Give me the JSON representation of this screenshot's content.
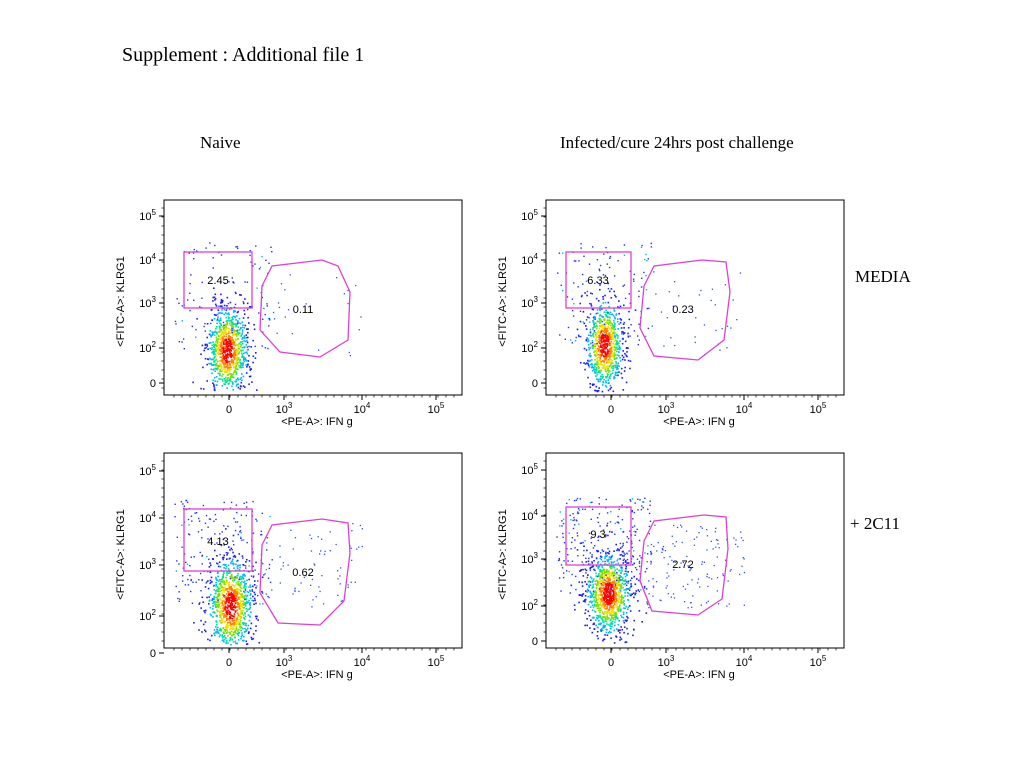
{
  "page": {
    "title": "Supplement : Additional file 1",
    "columns": [
      "Naive",
      "Infected/cure 24hrs post challenge"
    ],
    "rows": [
      "MEDIA",
      "+ 2C11"
    ]
  },
  "colors": {
    "gate": "#e040d0",
    "density_scale": [
      "#1a1aff",
      "#00b4ff",
      "#00e0a0",
      "#7de000",
      "#f0e000",
      "#ff8000",
      "#ff0000"
    ]
  },
  "chart_data": [
    {
      "type": "scatter",
      "plot_kind": "flow-cytometry density dot plot",
      "condition": "Naive",
      "stimulation": "MEDIA",
      "xlabel": "<PE-A>: IFN g",
      "ylabel": "<FITC-A>: KLRG1",
      "x_scale": "biexponential",
      "y_scale": "biexponential",
      "x_ticks": [
        "0",
        "10^3",
        "10^4",
        "10^5"
      ],
      "y_ticks": [
        "0",
        "10^2",
        "10^3",
        "10^4",
        "10^5"
      ],
      "gates": [
        {
          "shape": "rectangle",
          "label": "2.45",
          "percent": 2.45
        },
        {
          "shape": "polygon",
          "label": "0.11",
          "percent": 0.11
        }
      ]
    },
    {
      "type": "scatter",
      "plot_kind": "flow-cytometry density dot plot",
      "condition": "Infected/cure 24hrs post challenge",
      "stimulation": "MEDIA",
      "xlabel": "<PE-A>: IFN g",
      "ylabel": "<FITC-A>: KLRG1",
      "x_scale": "biexponential",
      "y_scale": "biexponential",
      "x_ticks": [
        "0",
        "10^3",
        "10^4",
        "10^5"
      ],
      "y_ticks": [
        "0",
        "10^2",
        "10^3",
        "10^4",
        "10^5"
      ],
      "gates": [
        {
          "shape": "rectangle",
          "label": "6.33",
          "percent": 6.33
        },
        {
          "shape": "polygon",
          "label": "0.23",
          "percent": 0.23
        }
      ]
    },
    {
      "type": "scatter",
      "plot_kind": "flow-cytometry density dot plot",
      "condition": "Naive",
      "stimulation": "+ 2C11",
      "xlabel": "<PE-A>: IFN g",
      "ylabel": "<FITC-A>: KLRG1",
      "x_scale": "biexponential",
      "y_scale": "biexponential",
      "x_ticks": [
        "0",
        "10^3",
        "10^4",
        "10^5"
      ],
      "y_ticks": [
        "0",
        "10^2",
        "10^3",
        "10^4",
        "10^5"
      ],
      "gates": [
        {
          "shape": "rectangle",
          "label": "4.13",
          "percent": 4.13
        },
        {
          "shape": "polygon",
          "label": "0.62",
          "percent": 0.62
        }
      ]
    },
    {
      "type": "scatter",
      "plot_kind": "flow-cytometry density dot plot",
      "condition": "Infected/cure 24hrs post challenge",
      "stimulation": "+ 2C11",
      "xlabel": "<PE-A>: IFN g",
      "ylabel": "<FITC-A>: KLRG1",
      "x_scale": "biexponential",
      "y_scale": "biexponential",
      "x_ticks": [
        "0",
        "10^3",
        "10^4",
        "10^5"
      ],
      "y_ticks": [
        "0",
        "10^2",
        "10^3",
        "10^4",
        "10^5"
      ],
      "gates": [
        {
          "shape": "rectangle",
          "label": "9.3",
          "percent": 9.3
        },
        {
          "shape": "polygon",
          "label": "2.72",
          "percent": 2.72
        }
      ]
    }
  ]
}
